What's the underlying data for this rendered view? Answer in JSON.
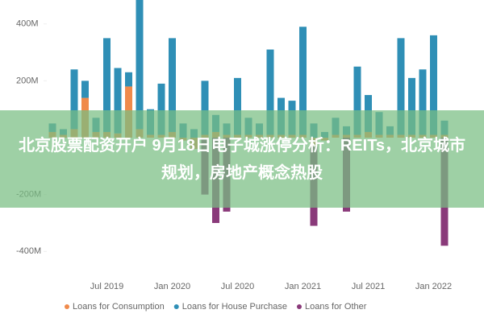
{
  "banner": {
    "text": "北京股票配资开户 9月18日电子城涨停分析：REITs，北京城市规划，房地产概念热股"
  },
  "chart_data": {
    "type": "stacked-bar",
    "categories": [
      null,
      null,
      null,
      null,
      null,
      "Jul 2019",
      null,
      null,
      null,
      null,
      null,
      "Jan 2020",
      null,
      null,
      null,
      null,
      null,
      "Jul 2020",
      null,
      null,
      null,
      null,
      null,
      "Jan 2021",
      null,
      null,
      null,
      null,
      null,
      "Jul 2021",
      null,
      null,
      null,
      null,
      null,
      "Jan 2022",
      null
    ],
    "series": [
      {
        "name": "Loans for Consumption",
        "color": "#f08a4b",
        "values": [
          20,
          10,
          30,
          140,
          20,
          20,
          15,
          180,
          30,
          10,
          10,
          20,
          -10,
          -40,
          10,
          20,
          10,
          10,
          10,
          10,
          10,
          10,
          10,
          10,
          -30,
          -10,
          10,
          10,
          10,
          20,
          10,
          10,
          10,
          10,
          10,
          10,
          10
        ]
      },
      {
        "name": "Loans for House Purchase",
        "color": "#2f8fb6",
        "values": [
          30,
          20,
          210,
          60,
          50,
          330,
          230,
          50,
          460,
          90,
          180,
          330,
          50,
          30,
          190,
          60,
          40,
          200,
          60,
          40,
          300,
          130,
          120,
          380,
          50,
          20,
          60,
          30,
          240,
          130,
          80,
          30,
          340,
          200,
          230,
          350,
          50
        ]
      },
      {
        "name": "Loans for Other",
        "color": "#8a3a7a",
        "values": [
          0,
          0,
          0,
          0,
          0,
          0,
          0,
          0,
          0,
          0,
          0,
          0,
          0,
          0,
          -200,
          -300,
          -260,
          0,
          0,
          0,
          0,
          0,
          0,
          0,
          -280,
          0,
          0,
          -260,
          0,
          0,
          0,
          0,
          0,
          0,
          0,
          0,
          -380
        ]
      }
    ],
    "ylim": [
      -450,
      470
    ],
    "yticks": [
      {
        "value": 400,
        "label": "400M"
      },
      {
        "value": 200,
        "label": "200M"
      },
      {
        "value": -200,
        "label": "-200M"
      },
      {
        "value": -400,
        "label": "-400M"
      }
    ]
  }
}
